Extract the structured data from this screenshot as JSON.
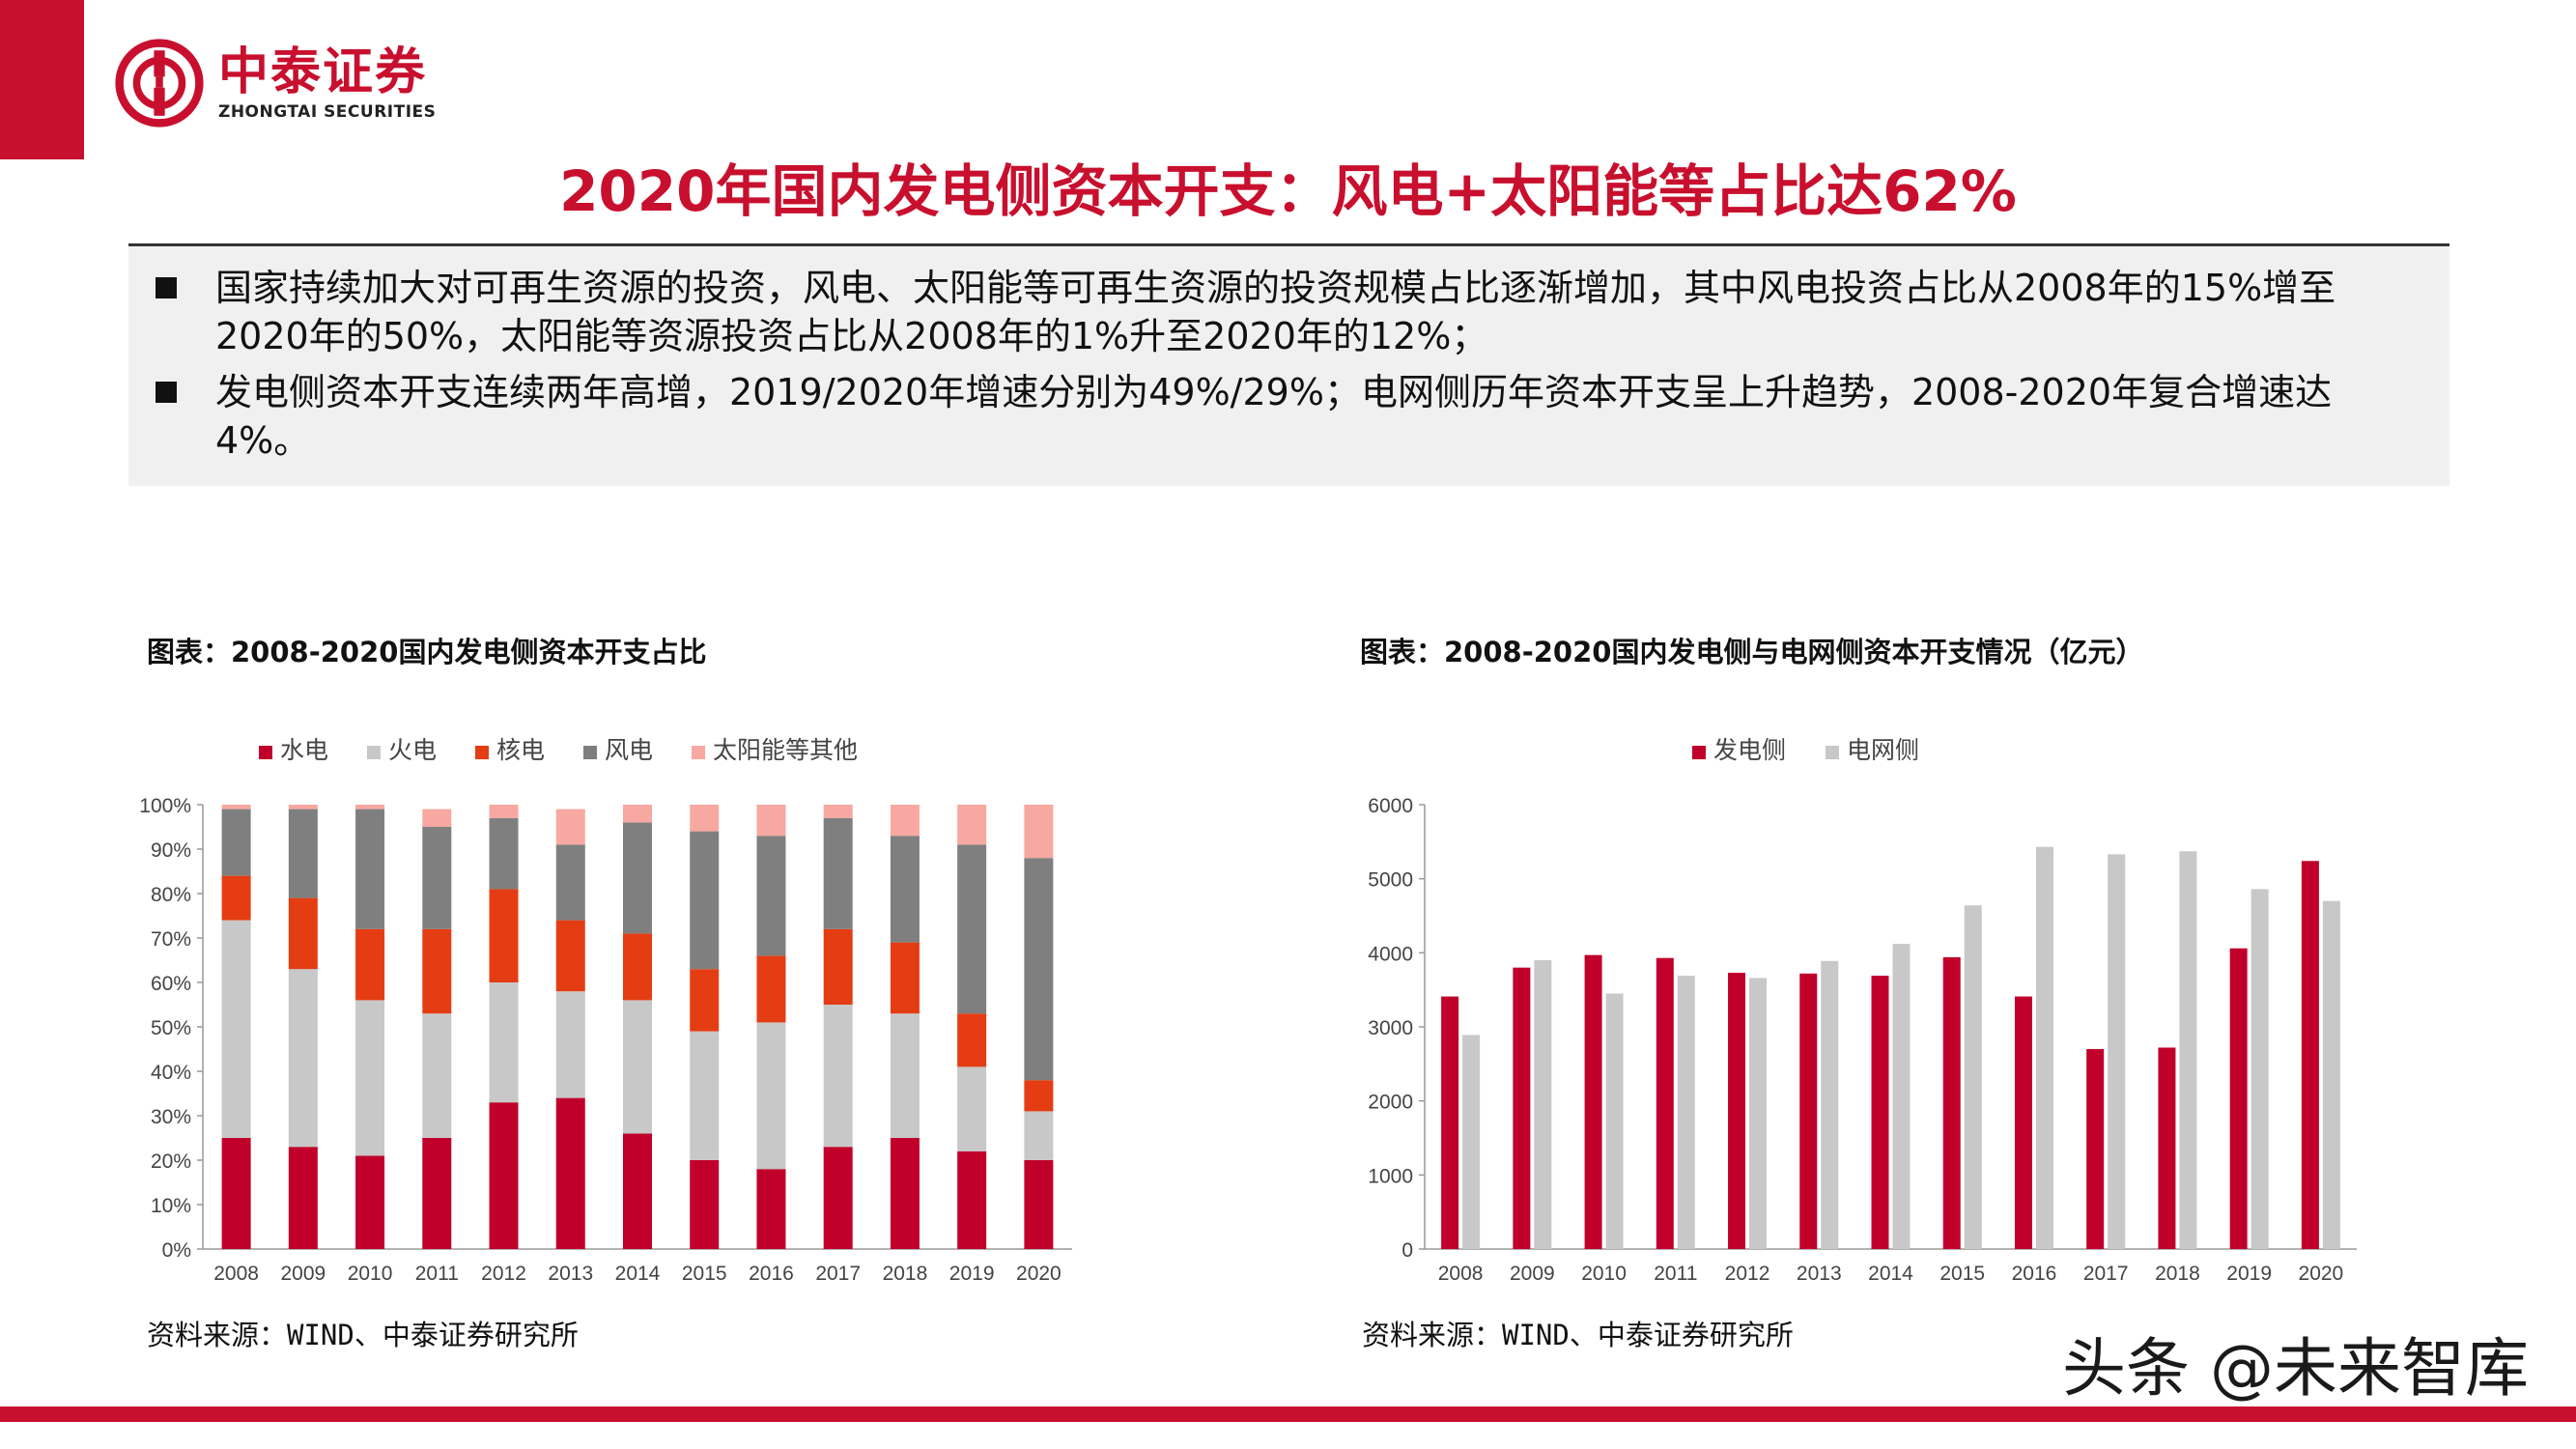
{
  "brand": {
    "name_cn": "中泰证券",
    "name_en": "ZHONGTAI SECURITIES",
    "accent": "#c8102e"
  },
  "page": {
    "title": "2020年国内发电侧资本开支：风电+太阳能等占比达62%"
  },
  "summary": {
    "bullets": [
      "国家持续加大对可再生资源的投资，风电、太阳能等可再生资源的投资规模占比逐渐增加，其中风电投资占比从2008年的15%增至2020年的50%，太阳能等资源投资占比从2008年的1%升至2020年的12%；",
      "发电侧资本开支连续两年高增，2019/2020年增速分别为49%/29%；电网侧历年资本开支呈上升趋势，2008-2020年复合增速达4%。"
    ]
  },
  "chart_left": {
    "caption": "图表：2008-2020国内发电侧资本开支占比",
    "source": "资料来源：WIND、中泰证券研究所"
  },
  "chart_right": {
    "caption": "图表：2008-2020国内发电侧与电网侧资本开支情况（亿元）",
    "source": "资料来源：WIND、中泰证券研究所"
  },
  "watermark": "头条 @未来智库",
  "chart_data": [
    {
      "type": "bar",
      "stacked": true,
      "title": "2008-2020国内发电侧资本开支占比",
      "categories": [
        "2008",
        "2009",
        "2010",
        "2011",
        "2012",
        "2013",
        "2014",
        "2015",
        "2016",
        "2017",
        "2018",
        "2019",
        "2020"
      ],
      "series": [
        {
          "name": "水电",
          "color": "#c0002a",
          "values": [
            0.25,
            0.23,
            0.21,
            0.25,
            0.33,
            0.34,
            0.26,
            0.2,
            0.18,
            0.23,
            0.25,
            0.22,
            0.2
          ]
        },
        {
          "name": "火电",
          "color": "#c8c8c8",
          "values": [
            0.49,
            0.4,
            0.35,
            0.28,
            0.27,
            0.24,
            0.3,
            0.29,
            0.33,
            0.32,
            0.28,
            0.19,
            0.11
          ]
        },
        {
          "name": "核电",
          "color": "#e43d13",
          "values": [
            0.1,
            0.16,
            0.16,
            0.19,
            0.21,
            0.16,
            0.15,
            0.14,
            0.15,
            0.17,
            0.16,
            0.12,
            0.07
          ]
        },
        {
          "name": "风电",
          "color": "#7f7f7f",
          "values": [
            0.15,
            0.2,
            0.27,
            0.23,
            0.16,
            0.17,
            0.25,
            0.31,
            0.27,
            0.25,
            0.24,
            0.38,
            0.5
          ]
        },
        {
          "name": "太阳能等其他",
          "color": "#f7a8a0",
          "values": [
            0.01,
            0.01,
            0.01,
            0.04,
            0.03,
            0.08,
            0.04,
            0.06,
            0.07,
            0.03,
            0.07,
            0.09,
            0.12
          ]
        }
      ],
      "ylim": [
        0,
        1
      ],
      "yticks": [
        "0%",
        "10%",
        "20%",
        "30%",
        "40%",
        "50%",
        "60%",
        "70%",
        "80%",
        "90%",
        "100%"
      ],
      "legend": "top"
    },
    {
      "type": "bar",
      "title": "2008-2020国内发电侧与电网侧资本开支情况（亿元）",
      "categories": [
        "2008",
        "2009",
        "2010",
        "2011",
        "2012",
        "2013",
        "2014",
        "2015",
        "2016",
        "2017",
        "2018",
        "2019",
        "2020"
      ],
      "series": [
        {
          "name": "发电侧",
          "color": "#c0002a",
          "values": [
            3410,
            3800,
            3970,
            3930,
            3730,
            3720,
            3690,
            3940,
            3410,
            2700,
            2720,
            4060,
            5240
          ]
        },
        {
          "name": "电网侧",
          "color": "#c8c8c8",
          "values": [
            2890,
            3900,
            3450,
            3690,
            3660,
            3890,
            4120,
            4640,
            5430,
            5330,
            5370,
            4860,
            4700
          ]
        }
      ],
      "ylim": [
        0,
        6000
      ],
      "yticks": [
        "0",
        "1000",
        "2000",
        "3000",
        "4000",
        "5000",
        "6000"
      ],
      "legend": "top"
    }
  ]
}
